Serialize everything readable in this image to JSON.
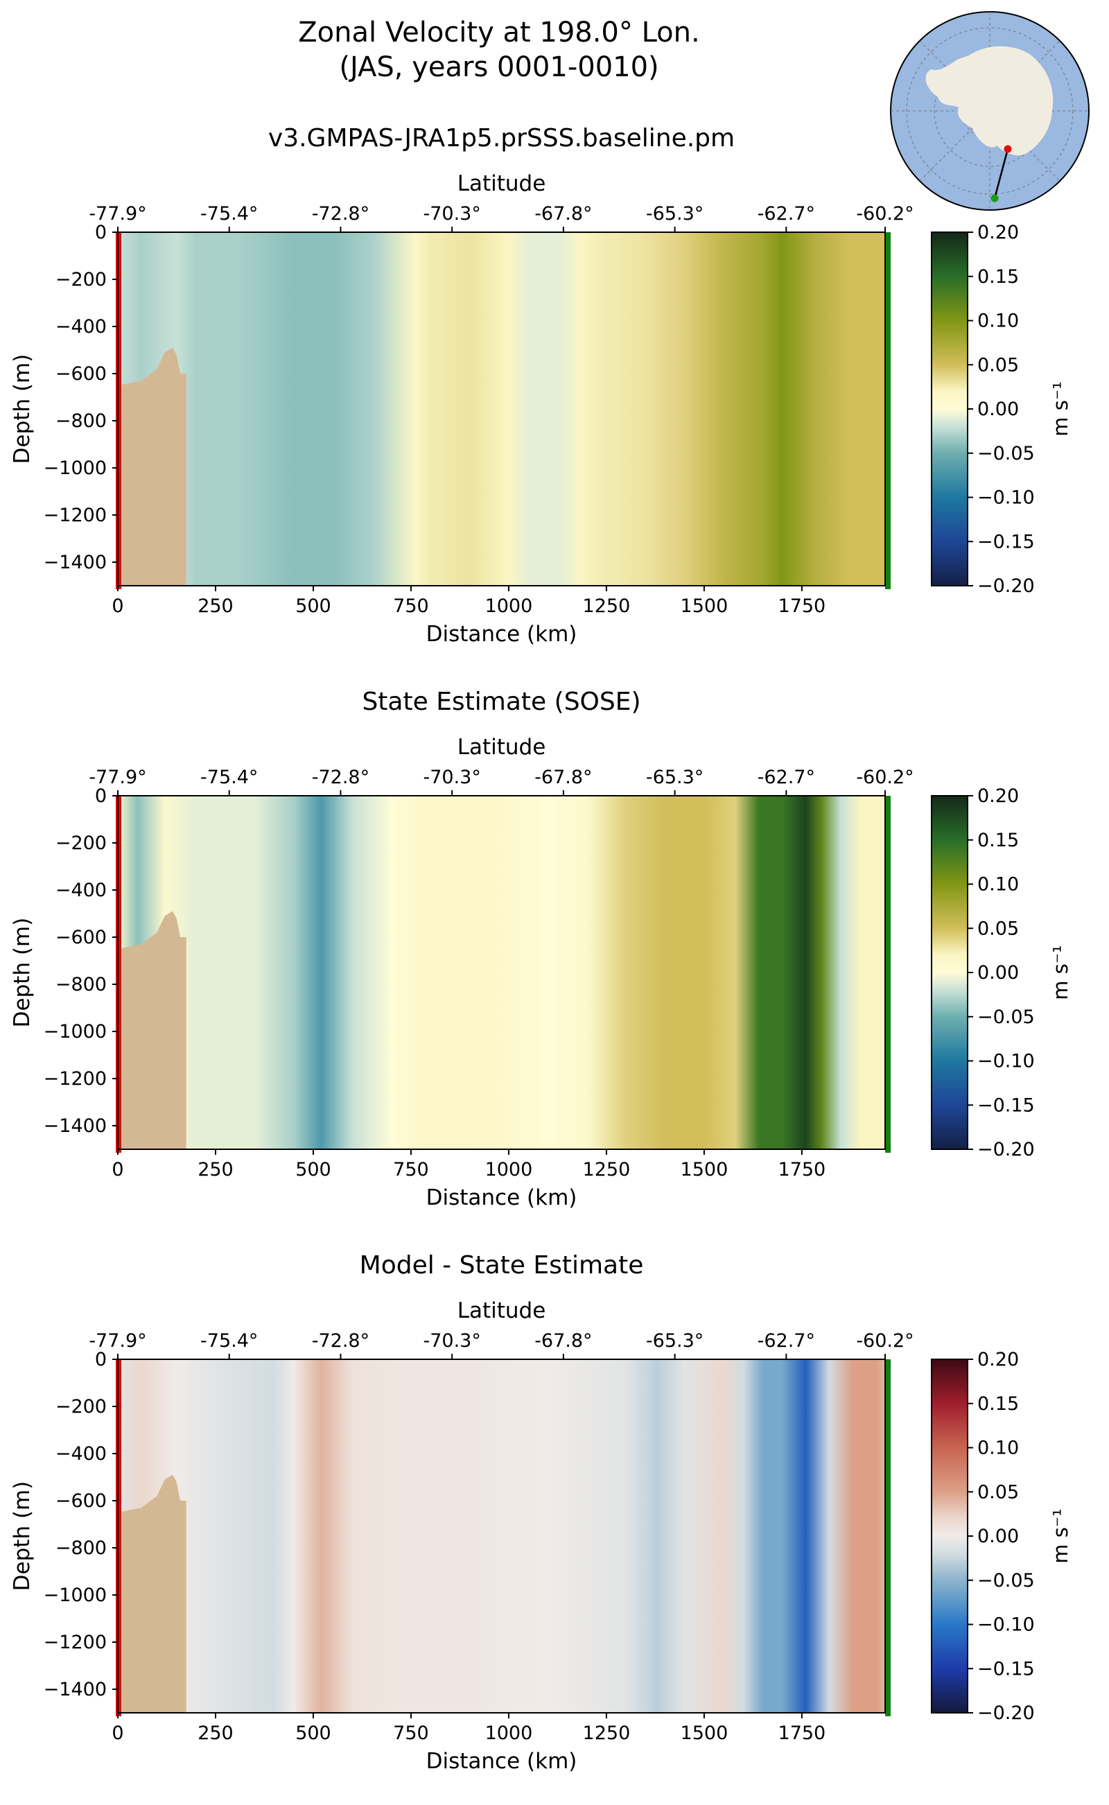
{
  "figure": {
    "title_line1": "Zonal Velocity at 198.0° Lon.",
    "title_line2": "(JAS, years 0001-0010)"
  },
  "inset_map": {
    "description_icon": "antarctica-polar-map-icon",
    "colors": {
      "ocean": "#9ab8e0",
      "land": "#f0ede0",
      "start_marker": "#e01010",
      "end_marker": "#10a010"
    }
  },
  "colors": {
    "topography": "#d4b894",
    "start_line": "#d01010",
    "end_line": "#108010"
  },
  "chart_data": [
    {
      "type": "heatmap",
      "panel": "model",
      "title": "v3.GMPAS-JRA1p5.prSSS.baseline.pm",
      "xlabel": "Distance (km)",
      "ylabel": "Depth (m)",
      "top_xlabel": "Latitude",
      "xlim": [
        0,
        1963
      ],
      "ylim": [
        -1500,
        0
      ],
      "x_ticks": [
        0,
        250,
        500,
        750,
        1000,
        1250,
        1500,
        1750
      ],
      "y_ticks": [
        0,
        -200,
        -400,
        -600,
        -800,
        -1000,
        -1200,
        -1400
      ],
      "lat_tick_labels": [
        "-77.9°",
        "-75.4°",
        "-72.8°",
        "-70.3°",
        "-67.8°",
        "-65.3°",
        "-62.7°",
        "-60.2°"
      ],
      "lat_tick_distance_km": [
        0,
        285,
        570,
        855,
        1140,
        1425,
        1710,
        1963
      ],
      "colorbar": {
        "label": "m s⁻¹",
        "vmin": -0.2,
        "vmax": 0.2,
        "ticks": [
          0.2,
          0.15,
          0.1,
          0.05,
          0.0,
          -0.05,
          -0.1,
          -0.15,
          -0.2
        ],
        "colormap": "delta"
      },
      "velocity_profile_km": [
        [
          0,
          -0.02
        ],
        [
          60,
          -0.03
        ],
        [
          150,
          -0.02
        ],
        [
          200,
          -0.03
        ],
        [
          300,
          -0.03
        ],
        [
          450,
          -0.04
        ],
        [
          550,
          -0.04
        ],
        [
          650,
          -0.03
        ],
        [
          760,
          0.015
        ],
        [
          800,
          0.025
        ],
        [
          900,
          0.03
        ],
        [
          1000,
          0.02
        ],
        [
          1060,
          -0.01
        ],
        [
          1130,
          -0.01
        ],
        [
          1180,
          0.02
        ],
        [
          1250,
          0.025
        ],
        [
          1350,
          0.03
        ],
        [
          1450,
          0.04
        ],
        [
          1550,
          0.06
        ],
        [
          1650,
          0.08
        ],
        [
          1700,
          0.1
        ],
        [
          1780,
          0.07
        ],
        [
          1870,
          0.05
        ],
        [
          1963,
          0.05
        ]
      ],
      "bathymetry": [
        [
          0,
          -650
        ],
        [
          60,
          -630
        ],
        [
          100,
          -580
        ],
        [
          120,
          -510
        ],
        [
          140,
          -490
        ],
        [
          150,
          -520
        ],
        [
          160,
          -600
        ],
        [
          175,
          -600
        ],
        [
          175,
          -1500
        ],
        [
          0,
          -1500
        ]
      ]
    },
    {
      "type": "heatmap",
      "panel": "obs",
      "title": "State Estimate (SOSE)",
      "xlabel": "Distance (km)",
      "ylabel": "Depth (m)",
      "top_xlabel": "Latitude",
      "xlim": [
        0,
        1963
      ],
      "ylim": [
        -1500,
        0
      ],
      "x_ticks": [
        0,
        250,
        500,
        750,
        1000,
        1250,
        1500,
        1750
      ],
      "y_ticks": [
        0,
        -200,
        -400,
        -600,
        -800,
        -1000,
        -1200,
        -1400
      ],
      "lat_tick_labels": [
        "-77.9°",
        "-75.4°",
        "-72.8°",
        "-70.3°",
        "-67.8°",
        "-65.3°",
        "-62.7°",
        "-60.2°"
      ],
      "lat_tick_distance_km": [
        0,
        285,
        570,
        855,
        1140,
        1425,
        1710,
        1963
      ],
      "colorbar": {
        "label": "m s⁻¹",
        "vmin": -0.2,
        "vmax": 0.2,
        "ticks": [
          0.2,
          0.15,
          0.1,
          0.05,
          0.0,
          -0.05,
          -0.1,
          -0.15,
          -0.2
        ],
        "colormap": "delta"
      },
      "velocity_profile_km": [
        [
          0,
          0.01
        ],
        [
          50,
          -0.04
        ],
        [
          120,
          0.01
        ],
        [
          200,
          -0.01
        ],
        [
          350,
          -0.01
        ],
        [
          450,
          -0.03
        ],
        [
          520,
          -0.07
        ],
        [
          600,
          -0.02
        ],
        [
          700,
          0.0
        ],
        [
          780,
          0.015
        ],
        [
          900,
          0.015
        ],
        [
          1000,
          0.01
        ],
        [
          1100,
          0.0
        ],
        [
          1200,
          0.01
        ],
        [
          1300,
          0.04
        ],
        [
          1400,
          0.05
        ],
        [
          1500,
          0.05
        ],
        [
          1580,
          0.04
        ],
        [
          1640,
          0.14
        ],
        [
          1700,
          0.14
        ],
        [
          1760,
          0.18
        ],
        [
          1800,
          0.12
        ],
        [
          1850,
          -0.02
        ],
        [
          1900,
          0.02
        ],
        [
          1963,
          0.02
        ]
      ],
      "bathymetry": [
        [
          0,
          -650
        ],
        [
          60,
          -630
        ],
        [
          100,
          -580
        ],
        [
          120,
          -510
        ],
        [
          140,
          -490
        ],
        [
          150,
          -520
        ],
        [
          160,
          -600
        ],
        [
          175,
          -600
        ],
        [
          175,
          -1500
        ],
        [
          0,
          -1500
        ]
      ]
    },
    {
      "type": "heatmap",
      "panel": "diff",
      "title": "Model - State Estimate",
      "xlabel": "Distance (km)",
      "ylabel": "Depth (m)",
      "top_xlabel": "Latitude",
      "xlim": [
        0,
        1963
      ],
      "ylim": [
        -1500,
        0
      ],
      "x_ticks": [
        0,
        250,
        500,
        750,
        1000,
        1250,
        1500,
        1750
      ],
      "y_ticks": [
        0,
        -200,
        -400,
        -600,
        -800,
        -1000,
        -1200,
        -1400
      ],
      "lat_tick_labels": [
        "-77.9°",
        "-75.4°",
        "-72.8°",
        "-70.3°",
        "-67.8°",
        "-65.3°",
        "-62.7°",
        "-60.2°"
      ],
      "lat_tick_distance_km": [
        0,
        285,
        570,
        855,
        1140,
        1425,
        1710,
        1963
      ],
      "colorbar": {
        "label": "m s⁻¹",
        "vmin": -0.2,
        "vmax": 0.2,
        "ticks": [
          0.2,
          0.15,
          0.1,
          0.05,
          0.0,
          -0.05,
          -0.1,
          -0.15,
          -0.2
        ],
        "colormap": "balance"
      },
      "velocity_profile_km": [
        [
          0,
          -0.01
        ],
        [
          60,
          0.02
        ],
        [
          150,
          0.0
        ],
        [
          250,
          -0.01
        ],
        [
          400,
          -0.02
        ],
        [
          450,
          0.0
        ],
        [
          520,
          0.04
        ],
        [
          600,
          0.01
        ],
        [
          700,
          0.005
        ],
        [
          900,
          0.005
        ],
        [
          1100,
          0.0
        ],
        [
          1300,
          -0.01
        ],
        [
          1380,
          -0.03
        ],
        [
          1450,
          -0.01
        ],
        [
          1550,
          0.02
        ],
        [
          1600,
          -0.02
        ],
        [
          1650,
          -0.06
        ],
        [
          1700,
          -0.06
        ],
        [
          1760,
          -0.12
        ],
        [
          1820,
          -0.02
        ],
        [
          1880,
          0.05
        ],
        [
          1940,
          0.05
        ],
        [
          1963,
          0.04
        ]
      ],
      "bathymetry": [
        [
          0,
          -650
        ],
        [
          60,
          -630
        ],
        [
          100,
          -580
        ],
        [
          120,
          -510
        ],
        [
          140,
          -490
        ],
        [
          150,
          -520
        ],
        [
          160,
          -600
        ],
        [
          175,
          -600
        ],
        [
          175,
          -1500
        ],
        [
          0,
          -1500
        ]
      ]
    }
  ]
}
